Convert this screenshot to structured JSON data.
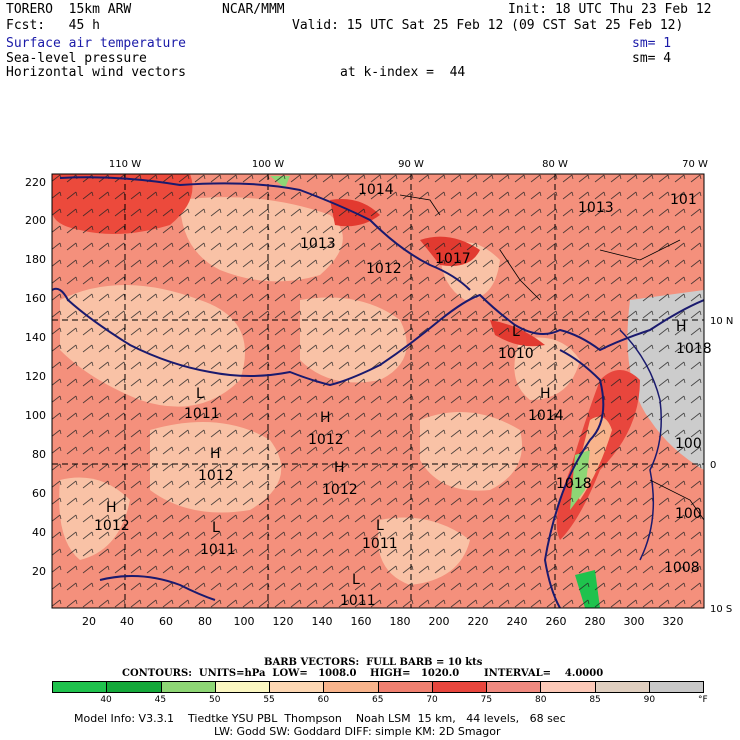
{
  "header": {
    "model": "TORERO  15km ARW",
    "org": "NCAR/MMM",
    "init": "Init: 18 UTC Thu 23 Feb 12",
    "fcst": "Fcst:   45 h",
    "valid": "Valid: 15 UTC Sat 25 Feb 12 (09 CST Sat 25 Feb 12)",
    "fields": [
      {
        "label": "Surface air temperature",
        "sm": "sm= 1",
        "color": "#1a1aa8"
      },
      {
        "label": "Sea-level pressure",
        "sm": "sm= 4",
        "color": "#000000"
      },
      {
        "label": "Horizontal wind vectors",
        "sm": "",
        "color": "#000000"
      }
    ],
    "k_index": "at k-index =  44"
  },
  "map": {
    "top_labels": [
      "110 W",
      "100 W",
      "90 W",
      "80 W",
      "70 W"
    ],
    "right_labels": [
      "10 N",
      "0",
      "10 S"
    ],
    "y_ticks": [
      "220",
      "200",
      "180",
      "160",
      "140",
      "120",
      "100",
      "80",
      "60",
      "40",
      "20"
    ],
    "x_ticks": [
      "20",
      "40",
      "60",
      "80",
      "100",
      "120",
      "140",
      "160",
      "180",
      "200",
      "220",
      "240",
      "260",
      "280",
      "300",
      "320"
    ],
    "pressure_labels": [
      {
        "text": "1014",
        "hl": ""
      },
      {
        "text": "1013",
        "hl": ""
      },
      {
        "text": "1013",
        "hl": ""
      },
      {
        "text": "1012",
        "hl": ""
      },
      {
        "text": "1017",
        "hl": ""
      },
      {
        "text": "1010",
        "hl": "L"
      },
      {
        "text": "1018",
        "hl": "H"
      },
      {
        "text": "1011",
        "hl": "L"
      },
      {
        "text": "1012",
        "hl": "H"
      },
      {
        "text": "1014",
        "hl": "H"
      },
      {
        "text": "1012",
        "hl": "H"
      },
      {
        "text": "1012",
        "hl": "H"
      },
      {
        "text": "1012",
        "hl": "H"
      },
      {
        "text": "1018",
        "hl": ""
      },
      {
        "text": "1011",
        "hl": "L"
      },
      {
        "text": "1011",
        "hl": "L"
      },
      {
        "text": "1011",
        "hl": "L"
      },
      {
        "text": "100",
        "hl": ""
      },
      {
        "text": "100",
        "hl": ""
      },
      {
        "text": "1008",
        "hl": ""
      },
      {
        "text": "101",
        "hl": ""
      }
    ]
  },
  "barb_info": {
    "line1": "BARB VECTORS:  FULL BARB = 10 kts",
    "contours": "CONTOURS:  UNITS=hPa  LOW=   1008.0",
    "high": "HIGH=   1020.0",
    "interval": "INTERVAL=    4.0000"
  },
  "colorbar": {
    "colors": [
      "#1fc24d",
      "#14a83a",
      "#8ed675",
      "#fbf7c2",
      "#fdd7b3",
      "#f8b48c",
      "#f08070",
      "#e8463d",
      "#f08a80",
      "#fcc9b8",
      "#e0cfc0",
      "#c8c8c8"
    ],
    "labels": [
      "40",
      "45",
      "50",
      "55",
      "60",
      "65",
      "70",
      "75",
      "80",
      "85",
      "90",
      "°F"
    ]
  },
  "footer": {
    "line1": "Model Info: V3.3.1    Tiedtke YSU PBL  Thompson    Noah LSM  15 km,   44 levels,   68 sec",
    "line2": "LW: Godd SW: Goddard DIFF: simple KM: 2D Smagor"
  }
}
